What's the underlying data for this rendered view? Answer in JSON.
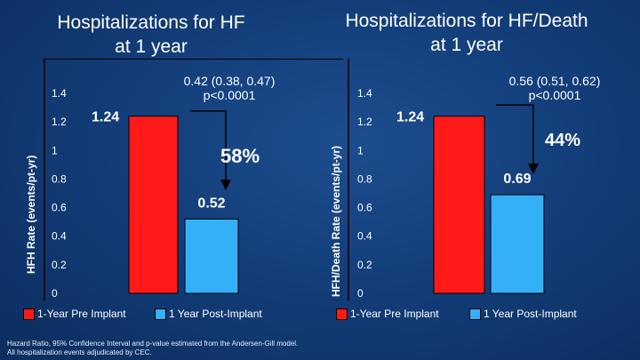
{
  "colors": {
    "pre": "#ff1a1a",
    "post": "#33b0f7",
    "axis": "#000000",
    "text": "#ffffff",
    "arrow": "#000000"
  },
  "chart_data": [
    {
      "type": "bar",
      "title_lines": [
        "Hospitalizations for HF",
        "at 1 year"
      ],
      "ylabel": "HFH Rate (events/pt-yr)",
      "ylim": [
        0,
        1.4
      ],
      "yticks": [
        "0",
        "0.2",
        "0.4",
        "0.6",
        "0.8",
        "1",
        "1.2",
        "1.4"
      ],
      "categories": [
        "1-Year Pre Implant",
        "1 Year Post-Implant"
      ],
      "values": [
        1.24,
        0.52
      ],
      "value_labels": [
        "1.24",
        "0.52"
      ],
      "stat_lines": [
        "0.42 (0.38, 0.47)",
        "p<0.0001"
      ],
      "reduction": "58%"
    },
    {
      "type": "bar",
      "title_lines": [
        "Hospitalizations for HF/Death",
        "at 1 year"
      ],
      "ylabel": "HFH/Death Rate (events/pt-yr)",
      "ylim": [
        0,
        1.4
      ],
      "yticks": [
        "0",
        "0.2",
        "0.4",
        "0.6",
        "0.8",
        "1",
        "1.2",
        "1.4"
      ],
      "categories": [
        "1-Year Pre Implant",
        "1 Year Post-Implant"
      ],
      "values": [
        1.24,
        0.69
      ],
      "value_labels": [
        "1.24",
        "0.69"
      ],
      "stat_lines": [
        "0.56 (0.51, 0.62)",
        "p<0.0001"
      ],
      "reduction": "44%"
    }
  ],
  "footnote": {
    "line1": "Hazard Ratio, 95% Confidence Interval and p-value estimated from the Andersen-Gill model.",
    "line2": "All hospitalization events adjudicated by CEC."
  }
}
